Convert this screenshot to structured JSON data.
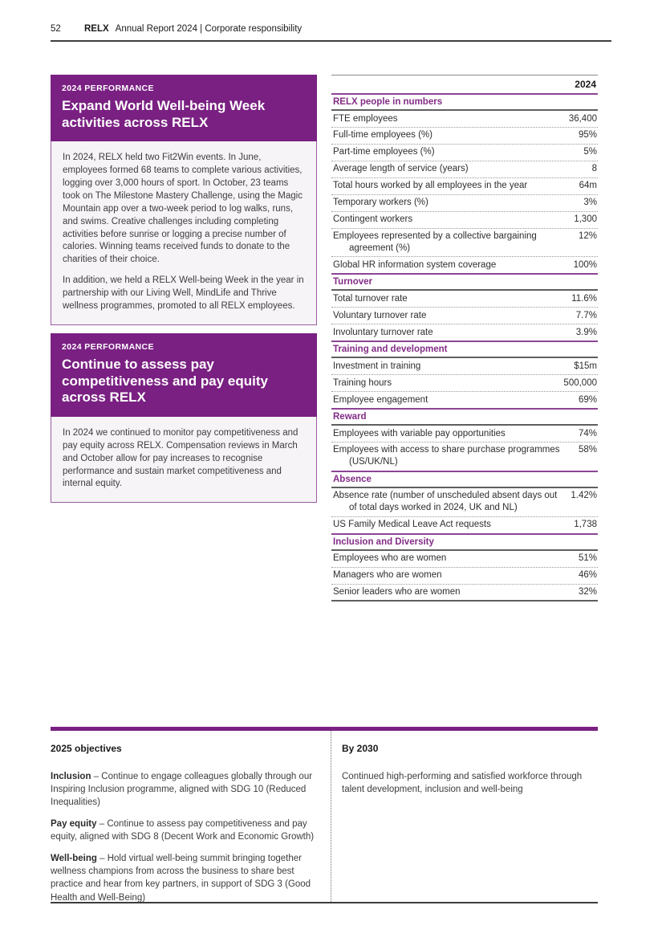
{
  "header": {
    "page_number": "52",
    "brand": "RELX",
    "title": "Annual Report 2024 | Corporate responsibility"
  },
  "colors": {
    "brand_purple": "#7a2083",
    "section_line_purple": "#8c4595",
    "section_text_purple": "#832d87"
  },
  "performance_boxes": [
    {
      "label": "2024 PERFORMANCE",
      "heading": "Expand World Well-being Week activities across RELX",
      "paragraphs": [
        "In 2024, RELX held two Fit2Win events. In June, employees formed 68 teams to complete various activities, logging over 3,000 hours of sport. In October, 23 teams took on The Milestone Mastery Challenge, using the Magic Mountain app over a two-week period to log walks, runs, and swims. Creative challenges including completing activities before sunrise or logging a precise number of calories. Winning teams received funds to donate to the charities of their choice.",
        "In addition, we held a RELX Well-being Week in the year in partnership with our Living Well, MindLife and Thrive wellness programmes, promoted to all RELX employees."
      ]
    },
    {
      "label": "2024 PERFORMANCE",
      "heading": "Continue to assess pay competitiveness and pay equity across RELX",
      "paragraphs": [
        "In 2024 we continued to monitor pay competitiveness and pay equity across RELX. Compensation reviews in March and October allow for pay increases to recognise performance and sustain market competitiveness and internal equity."
      ]
    }
  ],
  "table": {
    "year_header": "2024",
    "sections": [
      {
        "title": "RELX people in numbers",
        "rows": [
          {
            "label": "FTE employees",
            "value": "36,400"
          },
          {
            "label": "Full-time employees (%)",
            "value": "95%"
          },
          {
            "label": "Part-time employees (%)",
            "value": "5%"
          },
          {
            "label": "Average length of service (years)",
            "value": "8"
          },
          {
            "label": "Total hours worked by all employees in the year",
            "value": "64m"
          },
          {
            "label": "Temporary workers (%)",
            "value": "3%"
          },
          {
            "label": "Contingent workers",
            "value": "1,300"
          },
          {
            "label": "Employees represented by a collective bargaining agreement (%)",
            "value": "12%"
          },
          {
            "label": "Global HR information system coverage",
            "value": "100%"
          }
        ]
      },
      {
        "title": "Turnover",
        "rows": [
          {
            "label": "Total turnover rate",
            "value": "11.6%"
          },
          {
            "label": "Voluntary turnover rate",
            "value": "7.7%"
          },
          {
            "label": "Involuntary turnover rate",
            "value": "3.9%"
          }
        ]
      },
      {
        "title": "Training and development",
        "rows": [
          {
            "label": "Investment in training",
            "value": "$15m"
          },
          {
            "label": "Training hours",
            "value": "500,000"
          },
          {
            "label": "Employee engagement",
            "value": "69%"
          }
        ]
      },
      {
        "title": "Reward",
        "rows": [
          {
            "label": "Employees with variable pay opportunities",
            "value": "74%"
          },
          {
            "label": "Employees with access to share purchase programmes (US/UK/NL)",
            "value": "58%"
          }
        ]
      },
      {
        "title": "Absence",
        "rows": [
          {
            "label": "Absence rate (number of unscheduled absent days out of total days worked in 2024, UK and NL)",
            "value": "1.42%"
          },
          {
            "label": "US Family Medical Leave Act requests",
            "value": "1,738"
          }
        ]
      },
      {
        "title": "Inclusion and Diversity",
        "rows": [
          {
            "label": "Employees who are women",
            "value": "51%"
          },
          {
            "label": "Managers who are women",
            "value": "46%"
          },
          {
            "label": "Senior leaders who are women",
            "value": "32%"
          }
        ]
      }
    ]
  },
  "objectives": {
    "left_header": "2025 objectives",
    "items": [
      {
        "lead": "Inclusion",
        "text": " – Continue to engage colleagues globally through our Inspiring Inclusion programme, aligned with SDG 10 (Reduced Inequalities)"
      },
      {
        "lead": "Pay equity",
        "text": " – Continue to assess pay competitiveness and pay equity, aligned with SDG 8 (Decent Work and Economic Growth)"
      },
      {
        "lead": "Well-being",
        "text": " – Hold virtual well-being summit bringing together wellness champions from across the business to share best practice and hear from key partners, in support of SDG 3 (Good Health and Well-Being)"
      }
    ],
    "right_header": "By 2030",
    "right_text": "Continued high-performing and satisfied workforce through talent development, inclusion and well-being"
  }
}
